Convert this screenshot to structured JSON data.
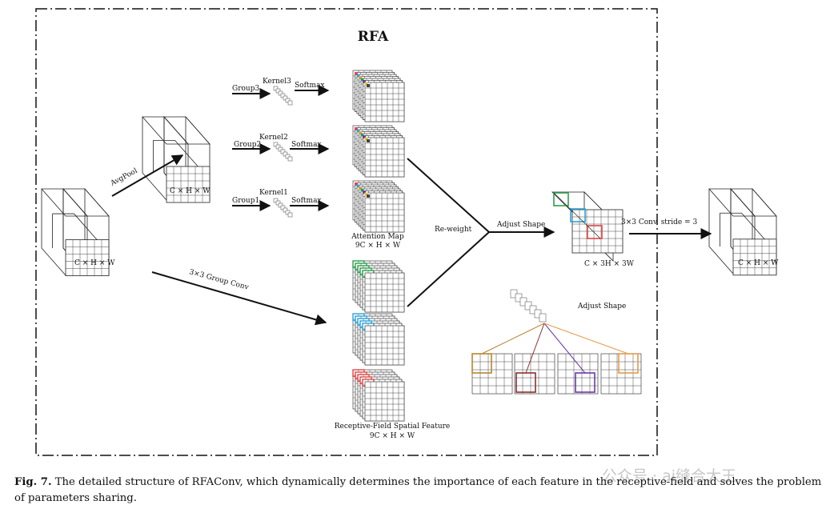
{
  "title": "RFA",
  "labels": {
    "input_dim": "C × H × W",
    "avgpool": "AvgPool",
    "pooled_dim": "C × H × W",
    "group3": "Group3",
    "group2": "Group2",
    "group1": "Group1",
    "kernel3": "Kernel3",
    "kernel2": "Kernel2",
    "kernel1": "Kernel1",
    "softmax": "Softmax",
    "attention_map": "Attention Map",
    "attention_dim": "9C × H × W",
    "group_conv": "3×3 Group Conv",
    "reweight": "Re-weight",
    "adjust_shape": "Adjust Shape",
    "adjusted_dim": "C × 3H × 3W",
    "conv_stride": "3×3 Conv, stride = 3",
    "output_dim": "C × H × W",
    "adjust_shape_small": "Adjust Shape",
    "spatial_feature": "Receptive-Field Spatial Feature",
    "spatial_dim": "9C × H × W"
  },
  "caption": {
    "prefix": "Fig. 7.",
    "text": "The detailed structure of RFAConv, which dynamically determines the importance of each feature in the receptive-field and solves the problem of parameters sharing."
  },
  "watermark": "公众号 · ai缝合大王",
  "colors": {
    "green": "#2e9e4f",
    "cyan": "#2aa3d8",
    "red": "#e04848",
    "brown": "#b8862e",
    "maroon": "#8a3030",
    "purple": "#6a3aa8",
    "orange": "#e69a4a"
  }
}
